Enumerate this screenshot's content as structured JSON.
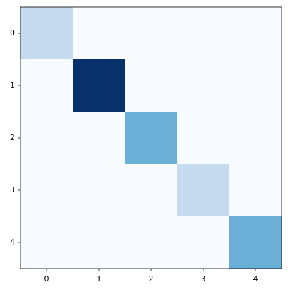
{
  "chart_data": {
    "type": "heatmap",
    "cmap": "Blues",
    "values": [
      [
        1,
        0,
        0,
        0,
        0
      ],
      [
        0,
        4,
        0,
        0,
        0
      ],
      [
        0,
        0,
        2,
        0,
        0
      ],
      [
        0,
        0,
        0,
        1,
        0
      ],
      [
        0,
        0,
        0,
        0,
        2
      ]
    ],
    "xlim": [
      -0.5,
      4.5
    ],
    "ylim": [
      4.5,
      -0.5
    ],
    "xticks": [
      0,
      1,
      2,
      3,
      4
    ],
    "yticks": [
      0,
      1,
      2,
      3,
      4
    ]
  }
}
